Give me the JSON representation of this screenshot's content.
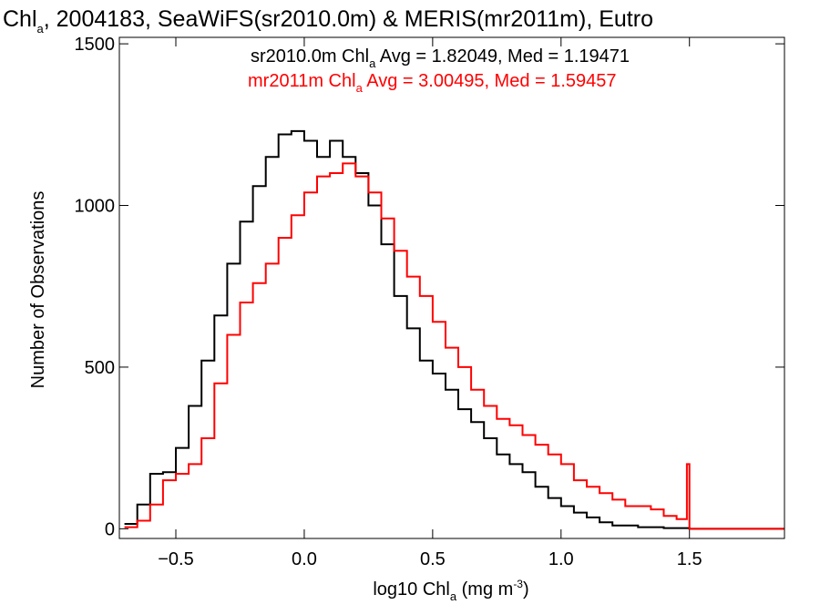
{
  "chart_data": {
    "type": "line",
    "step": true,
    "title": {
      "pre": "Chl",
      "sub": "a",
      "post": ", 2004183, SeaWiFS(sr2010.0m) & MERIS(mr2011m), Eutro"
    },
    "xlabel": {
      "pre": "log10 Chl",
      "sub": "a",
      "mid": " (mg m",
      "sup": "-3",
      "post": ")"
    },
    "ylabel": "Number of Observations",
    "xlim": [
      -0.72,
      1.87
    ],
    "ylim": [
      -30,
      1520
    ],
    "xticks": [
      -0.5,
      0.0,
      0.5,
      1.0,
      1.5
    ],
    "xtick_labels": [
      "−0.5",
      "0.0",
      "0.5",
      "1.0",
      "1.5"
    ],
    "yticks": [
      0,
      500,
      1000,
      1500
    ],
    "ytick_labels": [
      "0",
      "500",
      "1000",
      "1500"
    ],
    "grid": false,
    "series": [
      {
        "name": "sr2010.0m",
        "color": "#000000",
        "stats_text": {
          "pre": "sr2010.0m Chl",
          "sub": "a",
          "post": " Avg = 1.82049, Med = 1.19471"
        },
        "x": [
          -0.7,
          -0.65,
          -0.6,
          -0.55,
          -0.5,
          -0.45,
          -0.4,
          -0.35,
          -0.3,
          -0.25,
          -0.2,
          -0.15,
          -0.1,
          -0.05,
          0.0,
          0.05,
          0.1,
          0.15,
          0.2,
          0.25,
          0.3,
          0.35,
          0.4,
          0.45,
          0.5,
          0.55,
          0.6,
          0.65,
          0.7,
          0.75,
          0.8,
          0.85,
          0.9,
          0.95,
          1.0,
          1.05,
          1.1,
          1.15,
          1.2,
          1.3,
          1.4,
          1.5,
          1.6,
          1.7,
          1.8,
          1.87
        ],
        "y": [
          15,
          75,
          170,
          175,
          250,
          380,
          520,
          660,
          820,
          950,
          1060,
          1150,
          1220,
          1230,
          1200,
          1150,
          1200,
          1150,
          1100,
          1000,
          880,
          720,
          620,
          520,
          480,
          430,
          370,
          330,
          280,
          230,
          200,
          175,
          130,
          95,
          70,
          50,
          35,
          20,
          10,
          5,
          2,
          0,
          0,
          0,
          0,
          0
        ]
      },
      {
        "name": "mr2011m",
        "color": "#ff0000",
        "stats_text": {
          "pre": "mr2011m Chl",
          "sub": "a",
          "post": " Avg = 3.00495, Med = 1.59457"
        },
        "x": [
          -0.7,
          -0.65,
          -0.6,
          -0.55,
          -0.5,
          -0.45,
          -0.4,
          -0.35,
          -0.3,
          -0.25,
          -0.2,
          -0.15,
          -0.1,
          -0.05,
          0.0,
          0.05,
          0.1,
          0.15,
          0.2,
          0.25,
          0.3,
          0.35,
          0.4,
          0.45,
          0.5,
          0.55,
          0.6,
          0.65,
          0.7,
          0.75,
          0.8,
          0.85,
          0.9,
          0.95,
          1.0,
          1.05,
          1.1,
          1.15,
          1.2,
          1.25,
          1.3,
          1.35,
          1.4,
          1.45,
          1.48,
          1.49,
          1.5,
          1.6,
          1.7,
          1.8,
          1.87
        ],
        "y": [
          5,
          25,
          75,
          150,
          170,
          200,
          280,
          450,
          600,
          700,
          760,
          820,
          900,
          970,
          1040,
          1090,
          1100,
          1130,
          1090,
          1040,
          960,
          860,
          780,
          720,
          640,
          560,
          500,
          430,
          380,
          340,
          320,
          290,
          260,
          230,
          200,
          150,
          130,
          110,
          90,
          70,
          70,
          60,
          40,
          30,
          30,
          200,
          0,
          0,
          0,
          0,
          0
        ]
      }
    ]
  }
}
